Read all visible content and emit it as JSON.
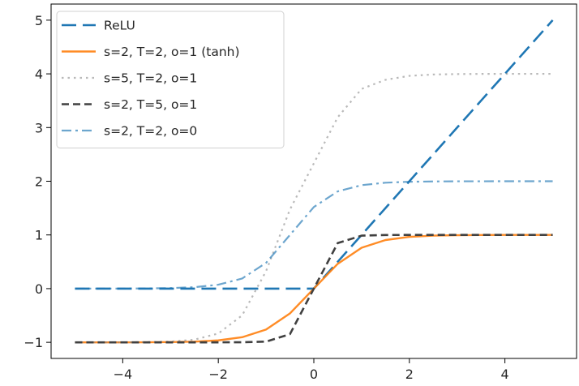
{
  "chart_data": {
    "type": "line",
    "title": "",
    "xlabel": "",
    "ylabel": "",
    "xlim": [
      -5.5,
      5.5
    ],
    "ylim": [
      -1.3,
      5.3
    ],
    "xticks": [
      -4,
      -2,
      0,
      2,
      4
    ],
    "xtick_labels": [
      "−4",
      "−2",
      "0",
      "2",
      "4"
    ],
    "yticks": [
      -1,
      0,
      1,
      2,
      3,
      4,
      5
    ],
    "ytick_labels": [
      "−1",
      "0",
      "1",
      "2",
      "3",
      "4",
      "5"
    ],
    "grid": false,
    "legend_position": "top-left",
    "x": [
      -5,
      -4.5,
      -4,
      -3.5,
      -3,
      -2.5,
      -2,
      -1.5,
      -1,
      -0.5,
      0,
      0.5,
      1,
      1.5,
      2,
      2.5,
      3,
      3.5,
      4,
      4.5,
      5
    ],
    "series": [
      {
        "name": "ReLU",
        "color": "#1f77b4",
        "style": "dashed",
        "values": [
          0,
          0,
          0,
          0,
          0,
          0,
          0,
          0,
          0,
          0,
          0,
          0.5,
          1,
          1.5,
          2,
          2.5,
          3,
          3.5,
          4,
          4.5,
          5
        ]
      },
      {
        "name": "s=2, T=2, o=1 (tanh)",
        "color": "#ff7f0e",
        "style": "solid",
        "values": [
          -1,
          -1,
          -1,
          -0.999,
          -0.995,
          -0.987,
          -0.964,
          -0.905,
          -0.762,
          -0.462,
          0,
          0.462,
          0.762,
          0.905,
          0.964,
          0.987,
          0.995,
          0.999,
          1,
          1,
          1
        ]
      },
      {
        "name": "s=5, T=2, o=1",
        "color": "#7f7f7f",
        "style": "dotted",
        "values": [
          -1,
          -1,
          -1,
          -0.996,
          -0.986,
          -0.951,
          -0.836,
          -0.498,
          0.326,
          1.474,
          2.333,
          3.191,
          3.72,
          3.889,
          3.963,
          3.988,
          3.996,
          3.999,
          4,
          4,
          4
        ]
      },
      {
        "name": "s=2, T=5, o=1",
        "color": "#404040",
        "style": "dashed",
        "values": [
          -1,
          -1,
          -1,
          -1,
          -1,
          -1,
          -1,
          -0.999,
          -0.987,
          -0.848,
          0,
          0.848,
          0.987,
          0.999,
          1,
          1,
          1,
          1,
          1,
          1,
          1
        ]
      },
      {
        "name": "s=2, T=2, o=0",
        "color": "#1f77b4",
        "style": "dashdot",
        "values": [
          0,
          0.001,
          0.001,
          0.004,
          0.01,
          0.027,
          0.073,
          0.189,
          0.48,
          1.0,
          1.52,
          1.811,
          1.927,
          1.973,
          1.99,
          1.996,
          1.999,
          1.999,
          2,
          2,
          2
        ]
      }
    ]
  }
}
